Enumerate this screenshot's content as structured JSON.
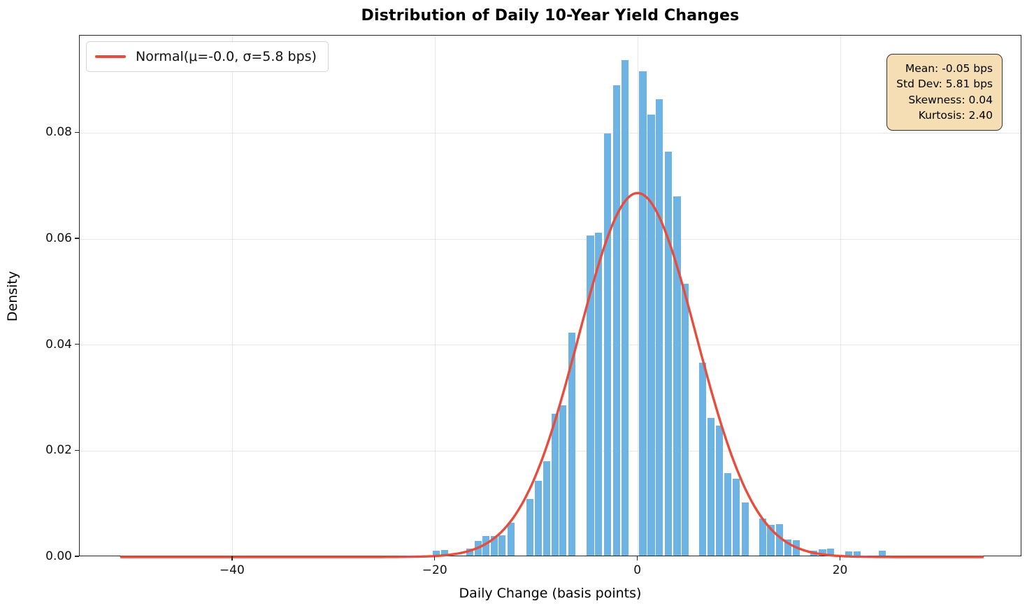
{
  "figure": {
    "title": "Distribution of Daily 10-Year Yield Changes",
    "xlabel": "Daily Change (basis points)",
    "ylabel": "Density"
  },
  "legend": {
    "label": "Normal(μ=-0.0, σ=5.8 bps)",
    "swatch_color": "#e74c3c"
  },
  "stats_box": {
    "background": "#f5deb3",
    "lines": [
      "Mean: -0.05 bps",
      "Std Dev: 5.81 bps",
      "Skewness: 0.04",
      "Kurtosis: 2.40"
    ]
  },
  "chart_data": {
    "type": "bar",
    "subtype": "histogram-with-normal-overlay",
    "title": "Distribution of Daily 10-Year Yield Changes",
    "xlabel": "Daily Change (basis points)",
    "ylabel": "Density",
    "xlim": [
      -55.1,
      37.9
    ],
    "ylim": [
      0,
      0.0984
    ],
    "grid": true,
    "legend_position": "upper-left",
    "xticks": [
      {
        "value": -40,
        "label": "−40"
      },
      {
        "value": -20,
        "label": "−20"
      },
      {
        "value": 0,
        "label": "0"
      },
      {
        "value": 20,
        "label": "20"
      }
    ],
    "yticks": [
      {
        "value": 0.0,
        "label": "0.00"
      },
      {
        "value": 0.02,
        "label": "0.02"
      },
      {
        "value": 0.04,
        "label": "0.04"
      },
      {
        "value": 0.06,
        "label": "0.06"
      },
      {
        "value": 0.08,
        "label": "0.08"
      }
    ],
    "bin_width": 0.85,
    "bars": [
      {
        "x": -19.9,
        "h": 0.0012
      },
      {
        "x": -19.1,
        "h": 0.0013
      },
      {
        "x": -16.6,
        "h": 0.0016
      },
      {
        "x": -15.8,
        "h": 0.003
      },
      {
        "x": -15.0,
        "h": 0.004
      },
      {
        "x": -14.2,
        "h": 0.0039
      },
      {
        "x": -13.4,
        "h": 0.0041
      },
      {
        "x": -12.55,
        "h": 0.0065
      },
      {
        "x": -10.7,
        "h": 0.0109
      },
      {
        "x": -9.85,
        "h": 0.0144
      },
      {
        "x": -9.0,
        "h": 0.0181
      },
      {
        "x": -8.2,
        "h": 0.027
      },
      {
        "x": -7.4,
        "h": 0.0286
      },
      {
        "x": -6.55,
        "h": 0.0424
      },
      {
        "x": -4.7,
        "h": 0.0607
      },
      {
        "x": -3.9,
        "h": 0.0612
      },
      {
        "x": -3.0,
        "h": 0.0799
      },
      {
        "x": -2.1,
        "h": 0.089
      },
      {
        "x": -1.3,
        "h": 0.0938
      },
      {
        "x": 0.47,
        "h": 0.0917
      },
      {
        "x": 1.3,
        "h": 0.0835
      },
      {
        "x": 2.1,
        "h": 0.0864
      },
      {
        "x": 3.0,
        "h": 0.0765
      },
      {
        "x": 3.85,
        "h": 0.068
      },
      {
        "x": 4.65,
        "h": 0.0516
      },
      {
        "x": 6.35,
        "h": 0.0367
      },
      {
        "x": 7.2,
        "h": 0.0262
      },
      {
        "x": 8.05,
        "h": 0.0248
      },
      {
        "x": 8.85,
        "h": 0.0158
      },
      {
        "x": 9.7,
        "h": 0.0148
      },
      {
        "x": 10.55,
        "h": 0.0103
      },
      {
        "x": 12.3,
        "h": 0.0073
      },
      {
        "x": 13.1,
        "h": 0.0061
      },
      {
        "x": 13.95,
        "h": 0.0062
      },
      {
        "x": 14.8,
        "h": 0.0033
      },
      {
        "x": 15.6,
        "h": 0.0031
      },
      {
        "x": 17.35,
        "h": 0.0012
      },
      {
        "x": 18.2,
        "h": 0.0014
      },
      {
        "x": 19.0,
        "h": 0.0016
      },
      {
        "x": 20.8,
        "h": 0.0011
      },
      {
        "x": 21.6,
        "h": 0.0011
      },
      {
        "x": 24.1,
        "h": 0.0012
      }
    ],
    "normal_curve": {
      "mu": -0.05,
      "sigma": 5.81,
      "x_start": -51.0,
      "x_end": 34.0,
      "peak_density": 0.0687
    },
    "colors": {
      "bar_fill": "#6db3e3",
      "bar_edge": "#ffffff",
      "curve": "#e74c3c",
      "grid": "#e6e6e6",
      "spine": "#262626",
      "stats_bg": "#f5deb3",
      "stats_border": "#343434"
    }
  }
}
